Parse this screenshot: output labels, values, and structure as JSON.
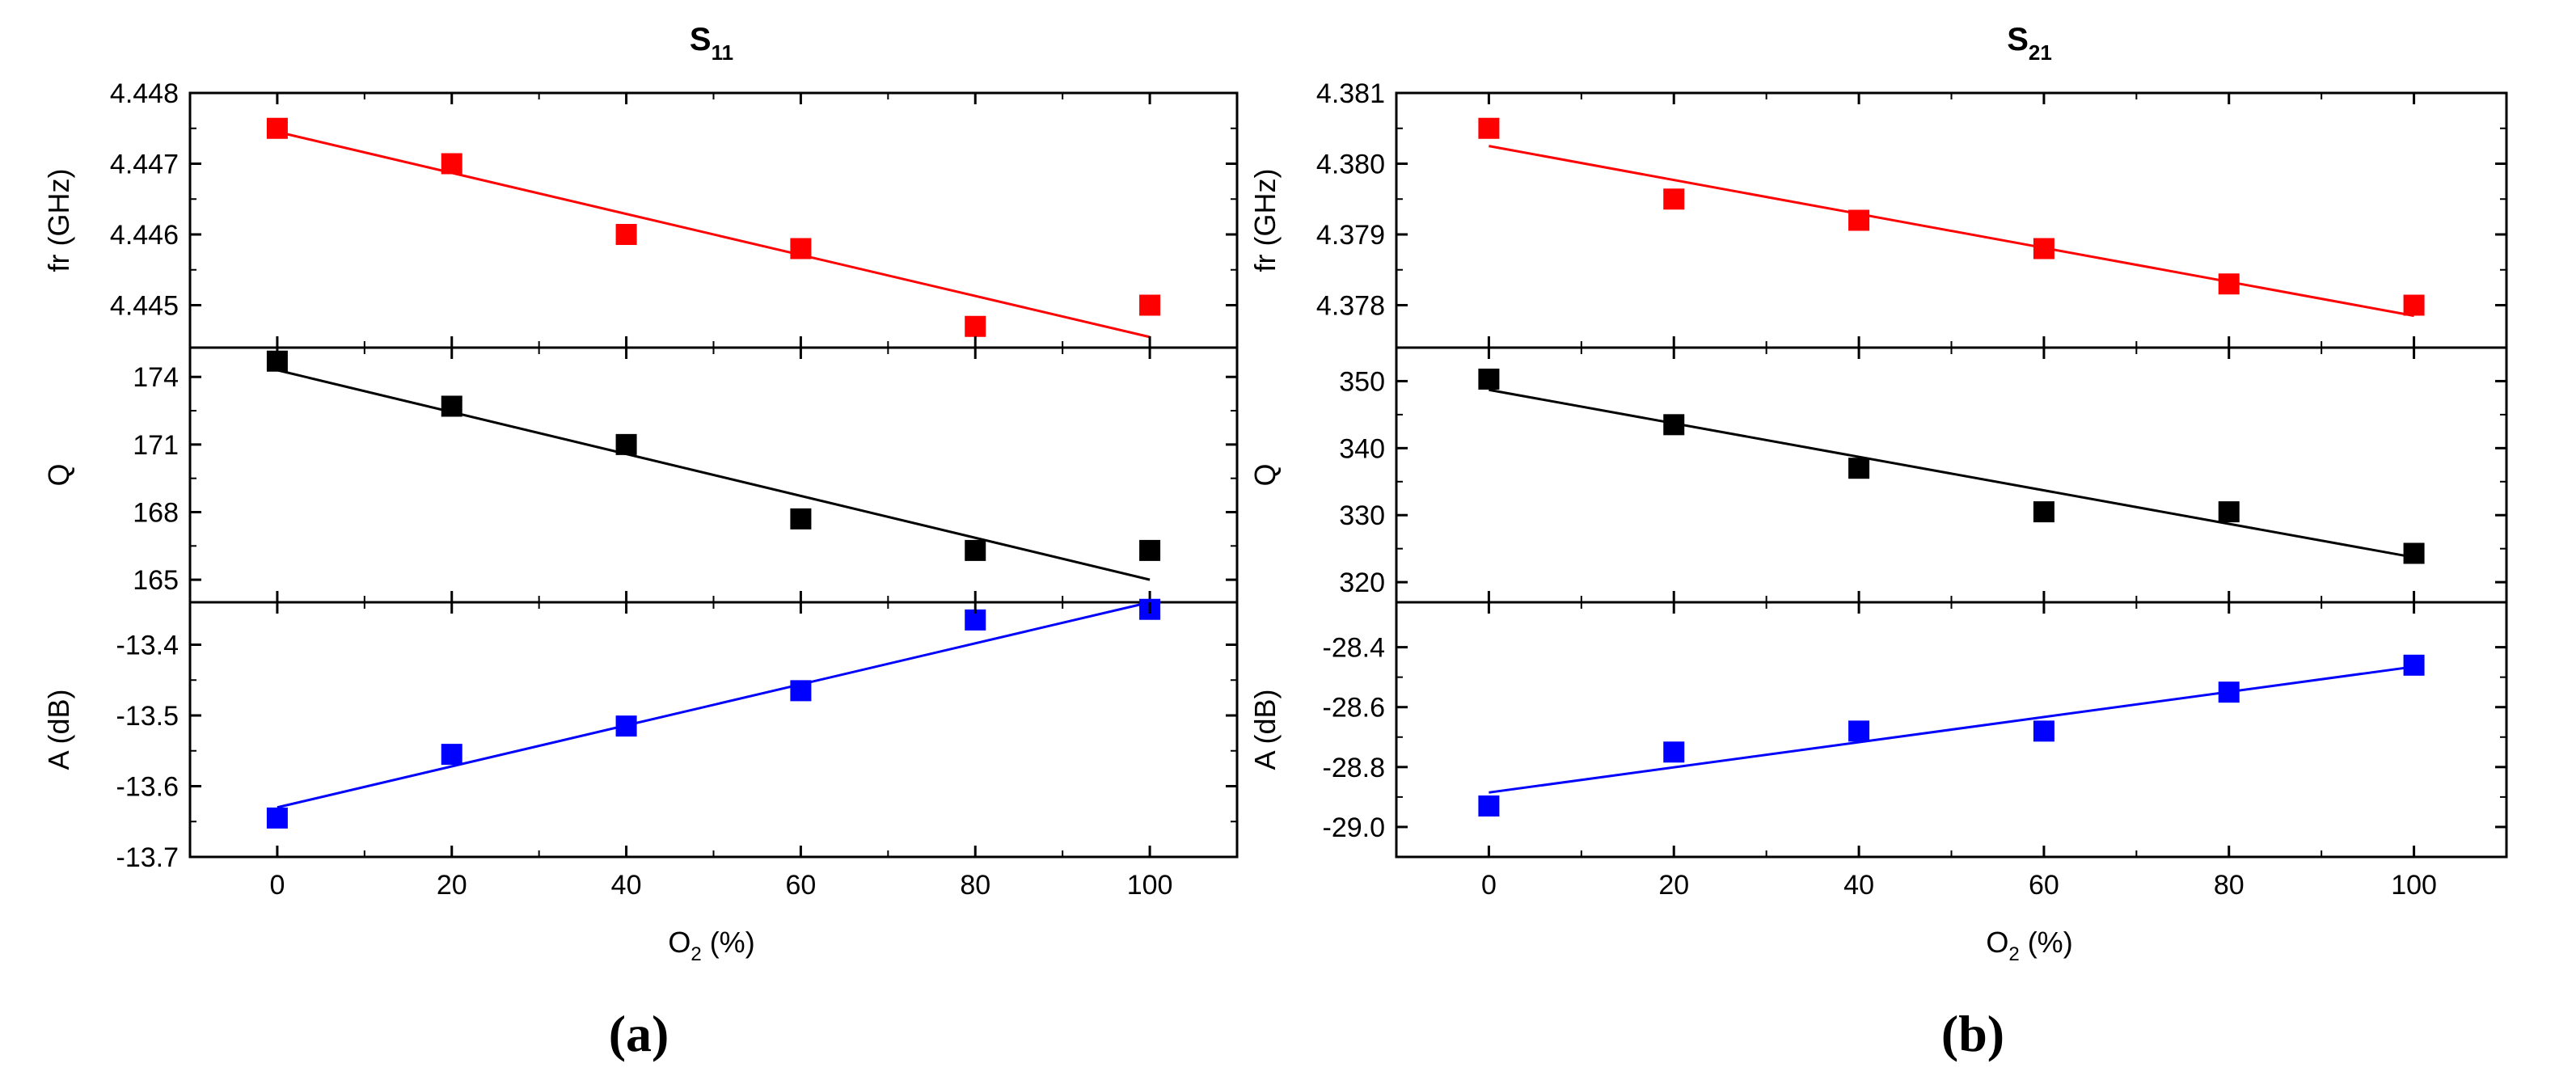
{
  "chart_data": [
    {
      "type": "scatter",
      "id": "a",
      "panel_label": "(a)",
      "title": {
        "main": "S",
        "sub": "11"
      },
      "xlabel": {
        "main": "O",
        "sub": "2",
        "rest": " (%)"
      },
      "xlim": [
        -10,
        110
      ],
      "xticks": [
        0,
        20,
        40,
        60,
        80,
        100
      ],
      "subplots": [
        {
          "name": "fr",
          "ylabel": "fr (GHz)",
          "color": "#ff0000",
          "ylim": [
            4.4444,
            4.448
          ],
          "yticks": [
            4.445,
            4.446,
            4.447,
            4.448
          ],
          "ytick_labels": [
            "4.445",
            "4.446",
            "4.447",
            "4.448"
          ],
          "x": [
            0,
            20,
            40,
            60,
            80,
            100
          ],
          "y": [
            4.4475,
            4.447,
            4.446,
            4.4458,
            4.4447,
            4.445
          ],
          "fit": [
            [
              0,
              4.44745
            ],
            [
              100,
              4.44455
            ]
          ]
        },
        {
          "name": "Q",
          "ylabel": "Q",
          "color": "#000000",
          "ylim": [
            164,
            175.3
          ],
          "yticks": [
            165,
            168,
            171,
            174
          ],
          "ytick_labels": [
            "165",
            "168",
            "171",
            "174"
          ],
          "x": [
            0,
            20,
            40,
            60,
            80,
            100
          ],
          "y": [
            174.7,
            172.7,
            171.0,
            167.7,
            166.3,
            166.3
          ],
          "fit": [
            [
              0,
              174.3
            ],
            [
              100,
              165.0
            ]
          ]
        },
        {
          "name": "A",
          "ylabel": "A (dB)",
          "color": "#0000ff",
          "ylim": [
            -13.7,
            -13.34
          ],
          "yticks": [
            -13.7,
            -13.6,
            -13.5,
            -13.4
          ],
          "ytick_labels": [
            "-13.7",
            "-13.6",
            "-13.5",
            "-13.4"
          ],
          "x": [
            0,
            20,
            40,
            60,
            80,
            100
          ],
          "y": [
            -13.645,
            -13.555,
            -13.515,
            -13.465,
            -13.365,
            -13.35
          ],
          "fit": [
            [
              0,
              -13.63
            ],
            [
              100,
              -13.34
            ]
          ]
        }
      ]
    },
    {
      "type": "scatter",
      "id": "b",
      "panel_label": "(b)",
      "title": {
        "main": "S",
        "sub": "21"
      },
      "xlabel": {
        "main": "O",
        "sub": "2",
        "rest": " (%)"
      },
      "xlim": [
        -10,
        110
      ],
      "xticks": [
        0,
        20,
        40,
        60,
        80,
        100
      ],
      "subplots": [
        {
          "name": "fr",
          "ylabel": "fr (GHz)",
          "color": "#ff0000",
          "ylim": [
            4.3774,
            4.381
          ],
          "yticks": [
            4.378,
            4.379,
            4.38,
            4.381
          ],
          "ytick_labels": [
            "4.378",
            "4.379",
            "4.380",
            "4.381"
          ],
          "x": [
            0,
            20,
            40,
            60,
            80,
            100
          ],
          "y": [
            4.3805,
            4.3795,
            4.3792,
            4.3788,
            4.3783,
            4.378
          ],
          "fit": [
            [
              0,
              4.38025
            ],
            [
              100,
              4.37785
            ]
          ]
        },
        {
          "name": "Q",
          "ylabel": "Q",
          "color": "#000000",
          "ylim": [
            317,
            355
          ],
          "yticks": [
            320,
            330,
            340,
            350
          ],
          "ytick_labels": [
            "320",
            "330",
            "340",
            "350"
          ],
          "x": [
            0,
            20,
            40,
            60,
            80,
            100
          ],
          "y": [
            350.3,
            343.5,
            337.0,
            330.5,
            330.5,
            324.3
          ],
          "fit": [
            [
              0,
              348.7
            ],
            [
              100,
              323.7
            ]
          ]
        },
        {
          "name": "A",
          "ylabel": "A (dB)",
          "color": "#0000ff",
          "ylim": [
            -29.1,
            -28.25
          ],
          "yticks": [
            -29.0,
            -28.8,
            -28.6,
            -28.4
          ],
          "ytick_labels": [
            "-29.0",
            "-28.8",
            "-28.6",
            "-28.4"
          ],
          "x": [
            0,
            20,
            40,
            60,
            80,
            100
          ],
          "y": [
            -28.93,
            -28.75,
            -28.68,
            -28.68,
            -28.55,
            -28.46
          ],
          "fit": [
            [
              0,
              -28.885
            ],
            [
              100,
              -28.465
            ]
          ]
        }
      ]
    }
  ]
}
